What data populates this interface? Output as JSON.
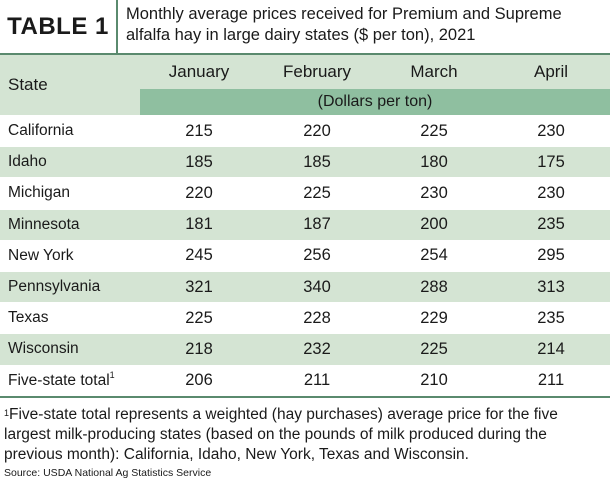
{
  "title_label": "TABLE 1",
  "title_text": "Monthly average prices received for Premium and Supreme alfalfa hay in large dairy states ($ per ton), 2021",
  "header": {
    "state": "State",
    "months": [
      "January",
      "February",
      "March",
      "April"
    ],
    "units": "(Dollars per ton)"
  },
  "rows": [
    {
      "state": "California",
      "values": [
        "215",
        "220",
        "225",
        "230"
      ]
    },
    {
      "state": "Idaho",
      "values": [
        "185",
        "185",
        "180",
        "175"
      ]
    },
    {
      "state": "Michigan",
      "values": [
        "220",
        "225",
        "230",
        "230"
      ]
    },
    {
      "state": "Minnesota",
      "values": [
        "181",
        "187",
        "200",
        "235"
      ]
    },
    {
      "state": "New York",
      "values": [
        "245",
        "256",
        "254",
        "295"
      ]
    },
    {
      "state": "Pennsylvania",
      "values": [
        "321",
        "340",
        "288",
        "313"
      ]
    },
    {
      "state": "Texas",
      "values": [
        "225",
        "228",
        "229",
        "235"
      ]
    },
    {
      "state": "Wisconsin",
      "values": [
        "218",
        "232",
        "225",
        "214"
      ]
    }
  ],
  "total": {
    "state": "Five-state total",
    "sup": "1",
    "values": [
      "206",
      "211",
      "210",
      "211"
    ]
  },
  "footnote": {
    "marker": "1",
    "text": "Five-state total represents a weighted (hay purchases) average price for the five largest milk-producing states (based on the pounds of milk produced during the previous month): California, Idaho, New York, Texas and Wisconsin."
  },
  "source": "Source: USDA National Ag Statistics Service",
  "colors": {
    "light_green": "#d4e4d3",
    "mid_green": "#8fbfa0",
    "border_green": "#5a8a6e"
  }
}
